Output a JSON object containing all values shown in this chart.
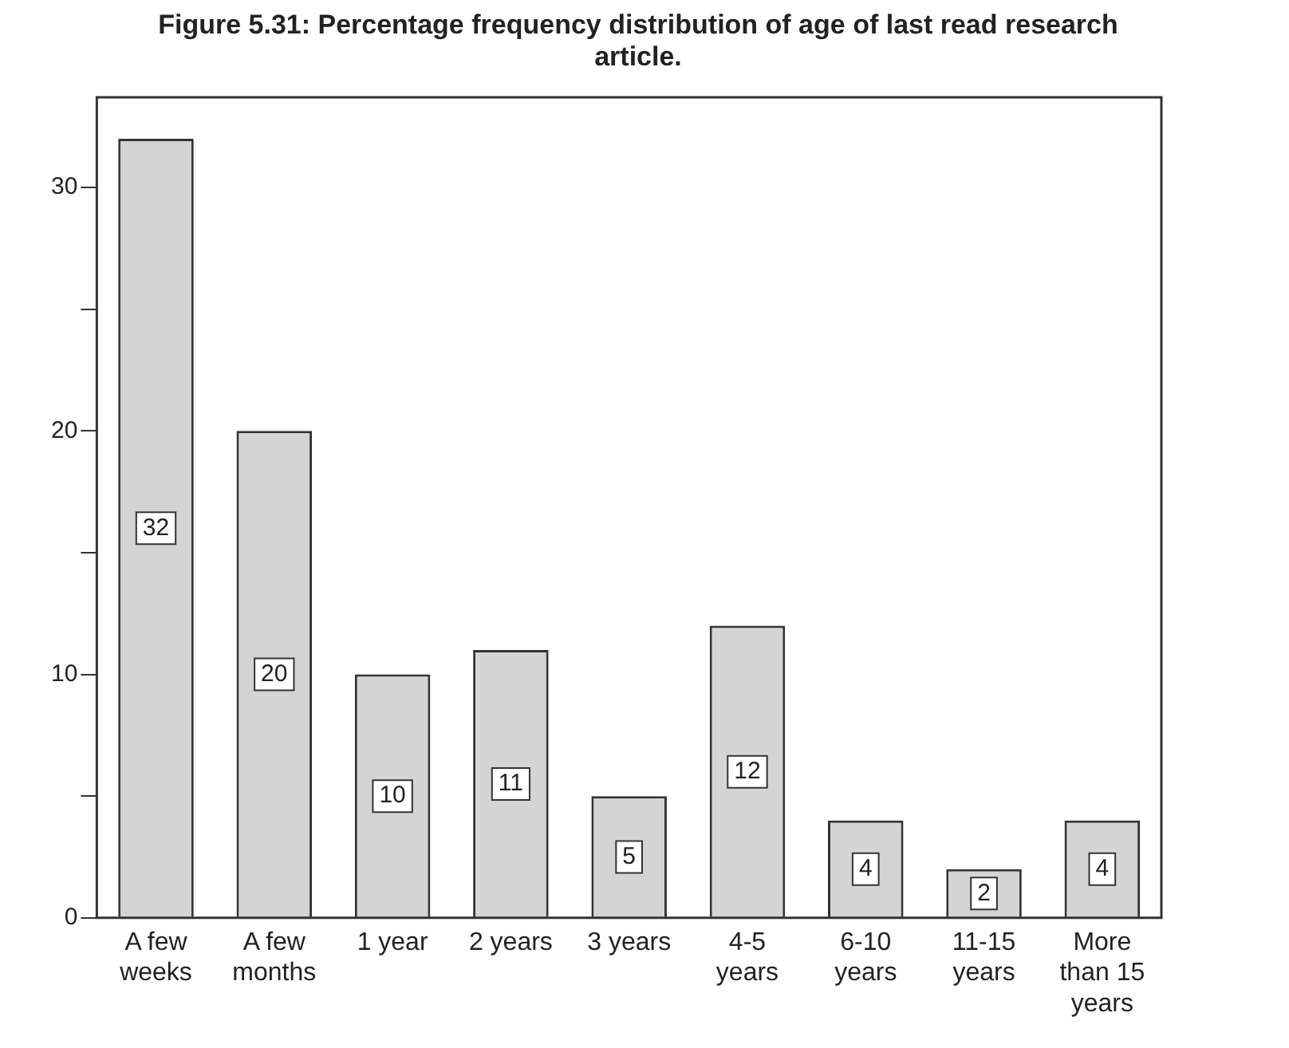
{
  "chart_data": {
    "type": "bar",
    "title": "Figure 5.31: Percentage frequency distribution of age of last read research article.",
    "categories": [
      "A few weeks",
      "A few months",
      "1 year",
      "2 years",
      "3 years",
      "4-5 years",
      "6-10 years",
      "11-15 years",
      "More than 15 years"
    ],
    "values": [
      32,
      20,
      10,
      11,
      5,
      12,
      4,
      2,
      4
    ],
    "color": "#d4d4d4",
    "ylim": [
      0,
      33.7
    ],
    "yticks": [
      0,
      {
        "value": 5,
        "label": null
      },
      10,
      {
        "value": 15,
        "label": null
      },
      20,
      {
        "value": 25,
        "label": null
      },
      30
    ],
    "grid": false,
    "legend": false,
    "data_labels": true
  }
}
